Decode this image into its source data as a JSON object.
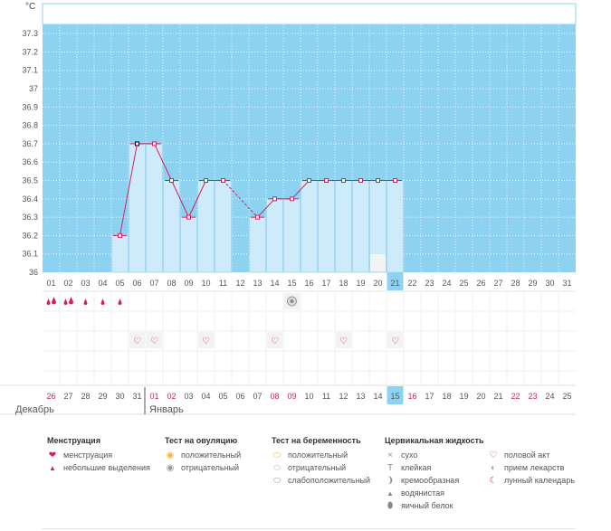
{
  "chart_data": {
    "type": "bar",
    "unit": "°C",
    "ylim": [
      36,
      37.4
    ],
    "yticks": [
      "36",
      "36.1",
      "36.2",
      "36.3",
      "36.4",
      "36.5",
      "36.6",
      "36.7",
      "36.8",
      "36.9",
      "37",
      "37.1",
      "37.2",
      "37.3"
    ],
    "cycle_days": [
      "01",
      "02",
      "03",
      "04",
      "05",
      "06",
      "07",
      "08",
      "09",
      "10",
      "11",
      "12",
      "13",
      "14",
      "15",
      "16",
      "17",
      "18",
      "19",
      "20",
      "21",
      "22",
      "23",
      "24",
      "25",
      "26",
      "27",
      "28",
      "29",
      "30",
      "31"
    ],
    "dates": [
      "26",
      "27",
      "28",
      "29",
      "30",
      "31",
      "01",
      "02",
      "03",
      "04",
      "05",
      "06",
      "07",
      "08",
      "09",
      "10",
      "11",
      "12",
      "13",
      "14",
      "15",
      "16",
      "17",
      "18",
      "19",
      "20",
      "21",
      "22",
      "23",
      "24",
      "25"
    ],
    "weekend_dates_red": [
      0,
      6,
      7,
      13,
      14,
      21,
      27,
      28
    ],
    "months": [
      {
        "label": "Декабрь",
        "start_index": 0
      },
      {
        "label": "Январь",
        "start_index": 6
      }
    ],
    "today_index": 20,
    "temperatures": [
      null,
      null,
      null,
      null,
      36.2,
      36.7,
      36.7,
      36.5,
      36.3,
      36.5,
      36.5,
      null,
      36.3,
      36.4,
      36.4,
      36.5,
      36.5,
      36.5,
      36.5,
      36.5,
      36.5,
      null,
      null,
      null,
      null,
      null,
      null,
      null,
      null,
      null,
      null
    ],
    "dashed_segments": [
      [
        10,
        12
      ]
    ],
    "marked_point_index": 5,
    "menstruation": [
      "heavy",
      "heavy",
      "light",
      "light",
      "light",
      null,
      null,
      null,
      null,
      null,
      null,
      null,
      null,
      null,
      null,
      null,
      null,
      null,
      null,
      null,
      null,
      null,
      null,
      null,
      null,
      null,
      null,
      null,
      null,
      null,
      null
    ],
    "ovulation_test": {
      "14": "negative"
    },
    "intercourse": [
      5,
      6,
      9,
      13,
      17,
      20
    ],
    "moon_marker": 19,
    "colors": {
      "plot_bg": "#8dd3f1",
      "bar_fill": "#cdebfb",
      "bar_stroke": "#a6d8f2",
      "line": "#d61f5a",
      "today": "#8dd3f1",
      "red": "#d61f5a"
    }
  },
  "legend": {
    "menstruation": {
      "title": "Менструация",
      "items": [
        "менструация",
        "небольшие выделения"
      ]
    },
    "ovulation": {
      "title": "Тест на овуляцию",
      "items": [
        "положительный",
        "отрицательный"
      ]
    },
    "pregnancy": {
      "title": "Тест на беременность",
      "items": [
        "положительный",
        "отрицательный",
        "слабоположительный"
      ]
    },
    "cervical": {
      "title": "Цервикальная жидкость",
      "items": [
        "сухо",
        "клейкая",
        "кремообразная",
        "водянистая",
        "яичный белок"
      ]
    },
    "other": {
      "items": [
        "половой акт",
        "прием лекарств",
        "лунный календарь"
      ]
    }
  }
}
